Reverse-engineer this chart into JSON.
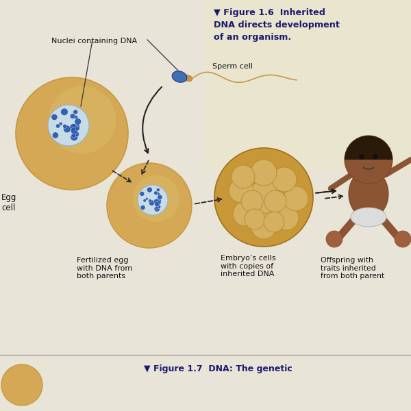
{
  "bg_color": "#e8e4d8",
  "title_text": "▼ Figure 1.6  Inherited\nDNA directs development\nof an organism.",
  "title_color": "#1a1a6e",
  "bottom_text": "▼ Figure 1.7  DNA: The genetic",
  "labels": {
    "nuclei": "Nuclei containing DNA",
    "sperm": "Sperm cell",
    "egg": "Egg\ncell",
    "fertilized": "Fertilized egg\nwith DNA from\nboth parents",
    "embryo": "Embryo’s cells\nwith copies of\ninherited DNA",
    "offspring": "Offspring with\ntraits inherited\nfrom both parent"
  },
  "egg_color": "#d4a855",
  "egg_outline": "#c89840",
  "egg_nucleus_color": "#c8dce8",
  "egg_nucleus_outline": "#90b0c8",
  "dna_color": "#2255aa",
  "sperm_body_color": "#c8a050",
  "sperm_head_color": "#4070b0",
  "fertilized_color": "#d4a855",
  "embryo_outer_color": "#c89838",
  "embryo_cell_color": "#d4b060",
  "embryo_cell_outline": "#b88828",
  "line_color": "#222222",
  "separator_color": "#999999",
  "bottom_circle_color": "#d4a855"
}
